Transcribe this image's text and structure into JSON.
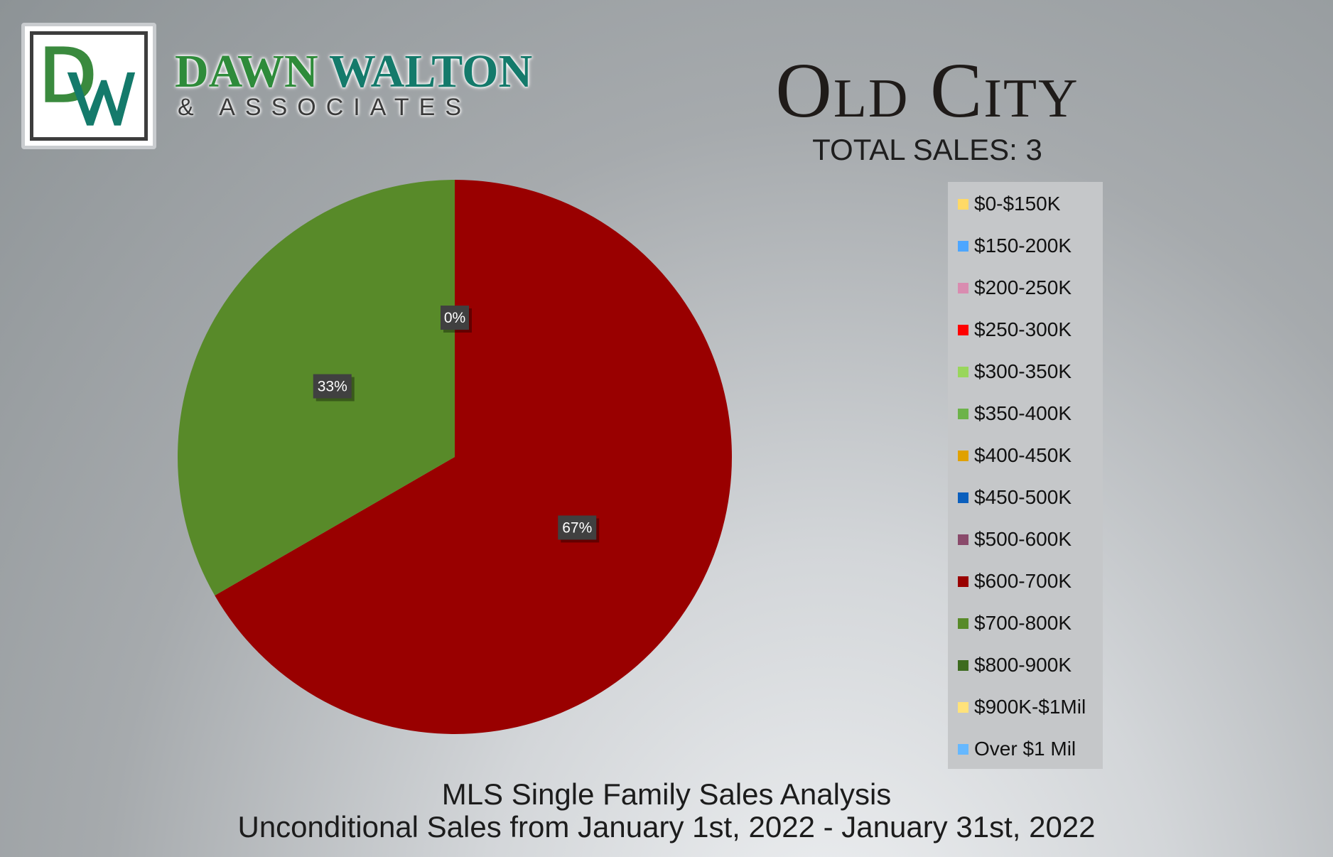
{
  "brand": {
    "logo_initials": "DW",
    "name_part1": "DAWN",
    "name_part2": "WALTON",
    "subtitle": "& ASSOCIATES",
    "colors": {
      "green": "#2e8b3a",
      "teal": "#147a6b"
    }
  },
  "header": {
    "title": "Old City",
    "total_sales": "TOTAL SALES: 3"
  },
  "footer": {
    "line1": "MLS Single Family Sales Analysis",
    "line2": "Unconditional Sales from January 1st, 2022 - January 31st, 2022"
  },
  "chart_data": {
    "type": "pie",
    "title": "Old City",
    "legend_position": "right",
    "categories": [
      "$0-$150K",
      "$150-200K",
      "$200-250K",
      "$250-300K",
      "$300-350K",
      "$350-400K",
      "$400-450K",
      "$450-500K",
      "$500-600K",
      "$600-700K",
      "$700-800K",
      "$800-900K",
      "$900K-$1Mil",
      "Over $1 Mil"
    ],
    "colors": [
      "#ffd966",
      "#4da6ff",
      "#d98cb0",
      "#ff0000",
      "#99d65c",
      "#6db34a",
      "#e0a100",
      "#0b5fbd",
      "#8a4a6b",
      "#990000",
      "#588a29",
      "#3d6b1f",
      "#ffe27a",
      "#66b8ff"
    ],
    "values": [
      0,
      0,
      0,
      0,
      0,
      0,
      0,
      0,
      0,
      2,
      1,
      0,
      0,
      0
    ],
    "data_labels": [
      {
        "text": "0%"
      },
      {
        "text": "67%"
      },
      {
        "text": "33%"
      }
    ]
  }
}
